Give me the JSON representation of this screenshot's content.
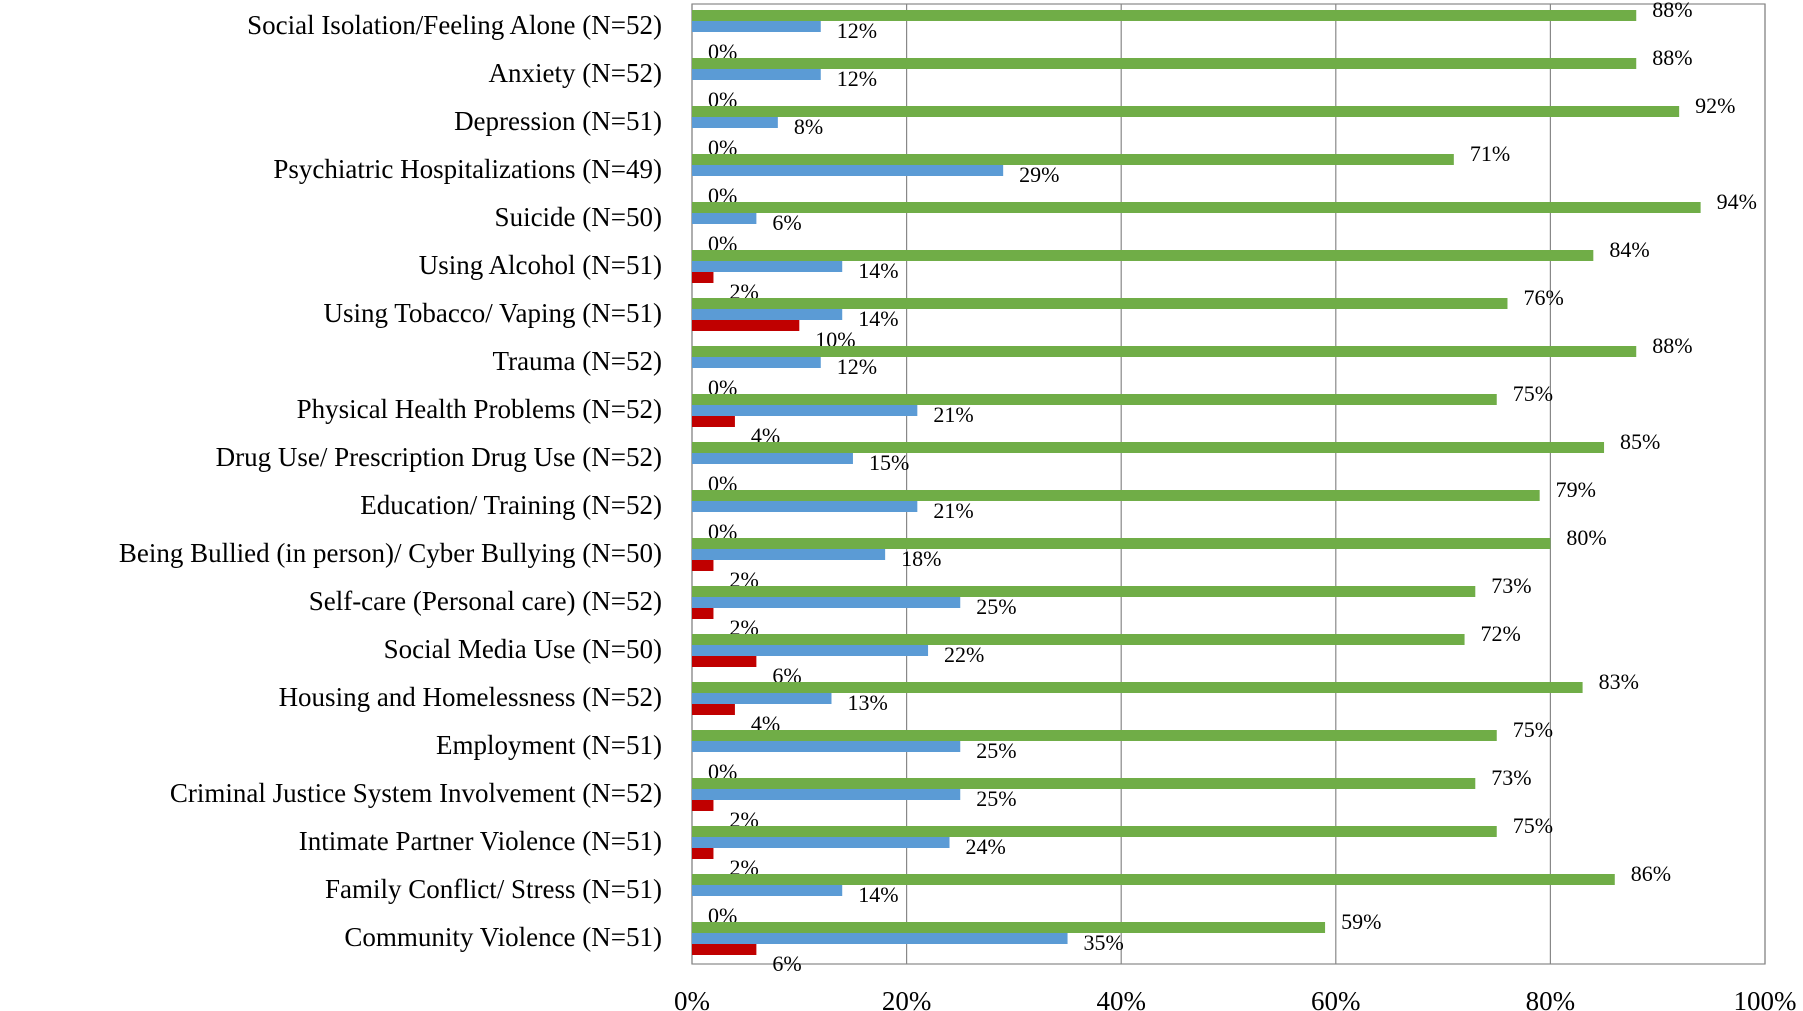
{
  "chart_data": {
    "type": "hbar",
    "categories": [
      "Social Isolation/Feeling Alone (N=52)",
      "Anxiety (N=52)",
      "Depression (N=51)",
      "Psychiatric Hospitalizations (N=49)",
      "Suicide (N=50)",
      "Using Alcohol (N=51)",
      "Using Tobacco/ Vaping (N=51)",
      "Trauma (N=52)",
      "Physical Health Problems (N=52)",
      "Drug Use/ Prescription Drug Use (N=52)",
      "Education/ Training (N=52)",
      "Being Bullied (in person)/ Cyber Bullying (N=50)",
      "Self-care (Personal care) (N=52)",
      "Social Media Use (N=50)",
      "Housing and Homelessness (N=52)",
      "Employment (N=51)",
      "Criminal Justice System Involvement (N=52)",
      "Intimate Partner Violence (N=51)",
      "Family Conflict/ Stress (N=51)",
      "Community Violence (N=51)"
    ],
    "series": [
      {
        "color": "#70ad47",
        "values": [
          88,
          88,
          92,
          71,
          94,
          84,
          76,
          88,
          75,
          85,
          79,
          80,
          73,
          72,
          83,
          75,
          73,
          75,
          86,
          59
        ],
        "value_labels": [
          "88%",
          "88%",
          "92%",
          "71%",
          "94%",
          "84%",
          "76%",
          "88%",
          "75%",
          "85%",
          "79%",
          "80%",
          "73%",
          "72%",
          "83%",
          "75%",
          "73%",
          "75%",
          "86%",
          "59%"
        ]
      },
      {
        "color": "#5b9bd5",
        "values": [
          12,
          12,
          8,
          29,
          6,
          14,
          14,
          12,
          21,
          15,
          21,
          18,
          25,
          22,
          13,
          25,
          25,
          24,
          14,
          35
        ],
        "value_labels": [
          "12%",
          "12%",
          "8%",
          "29%",
          "6%",
          "14%",
          "14%",
          "12%",
          "21%",
          "15%",
          "21%",
          "18%",
          "25%",
          "22%",
          "13%",
          "25%",
          "25%",
          "24%",
          "14%",
          "35%"
        ]
      },
      {
        "color": "#c00000",
        "values": [
          0,
          0,
          0,
          0,
          0,
          2,
          10,
          0,
          4,
          0,
          0,
          2,
          2,
          6,
          4,
          0,
          2,
          2,
          0,
          6
        ],
        "value_labels": [
          "0%",
          "0%",
          "0%",
          "0%",
          "0%",
          "2%",
          "10%",
          "0%",
          "4%",
          "0%",
          "0%",
          "2%",
          "2%",
          "6%",
          "4%",
          "0%",
          "2%",
          "2%",
          "0%",
          "6%"
        ]
      }
    ],
    "xlim": [
      0,
      100
    ],
    "xticks": [
      {
        "value": 0,
        "label": "0%"
      },
      {
        "value": 20,
        "label": "20%"
      },
      {
        "value": 40,
        "label": "40%"
      },
      {
        "value": 60,
        "label": "60%"
      },
      {
        "value": 80,
        "label": "80%"
      },
      {
        "value": 100,
        "label": "100%"
      }
    ],
    "grid": true
  }
}
